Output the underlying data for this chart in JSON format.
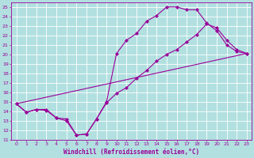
{
  "bg_color": "#b2e0e0",
  "grid_color": "#ffffff",
  "line_color": "#990099",
  "markersize": 2.5,
  "linewidth": 0.8,
  "xlabel": "Windchill (Refroidissement éolien,°C)",
  "xlim": [
    -0.5,
    23.5
  ],
  "ylim": [
    11,
    25.5
  ],
  "xticks": [
    0,
    1,
    2,
    3,
    4,
    5,
    6,
    7,
    8,
    9,
    10,
    11,
    12,
    13,
    14,
    15,
    16,
    17,
    18,
    19,
    20,
    21,
    22,
    23
  ],
  "yticks": [
    11,
    12,
    13,
    14,
    15,
    16,
    17,
    18,
    19,
    20,
    21,
    22,
    23,
    24,
    25
  ],
  "line1_x": [
    0,
    1,
    2,
    3,
    4,
    5,
    6,
    7,
    8,
    9,
    10,
    11,
    12,
    13,
    14,
    15,
    16,
    17,
    18,
    19,
    20,
    21,
    22,
    23
  ],
  "line1_y": [
    14.8,
    13.9,
    14.2,
    14.1,
    13.3,
    13.0,
    11.5,
    11.6,
    13.2,
    15.0,
    20.1,
    21.5,
    22.2,
    23.5,
    24.1,
    25.0,
    25.0,
    24.7,
    24.7,
    23.3,
    22.5,
    21.0,
    20.3,
    20.1
  ],
  "line2_x": [
    0,
    1,
    2,
    3,
    4,
    5,
    6,
    7,
    8,
    9,
    10,
    11,
    12,
    13,
    14,
    15,
    16,
    17,
    18,
    19,
    20,
    21,
    22,
    23
  ],
  "line2_y": [
    14.8,
    13.9,
    14.2,
    14.2,
    13.3,
    13.2,
    11.5,
    11.6,
    13.2,
    14.9,
    15.9,
    16.5,
    17.5,
    18.3,
    19.3,
    20.0,
    20.5,
    21.3,
    22.1,
    23.2,
    22.8,
    21.5,
    20.5,
    20.1
  ],
  "line3_x": [
    0,
    23
  ],
  "line3_y": [
    14.8,
    20.1
  ]
}
